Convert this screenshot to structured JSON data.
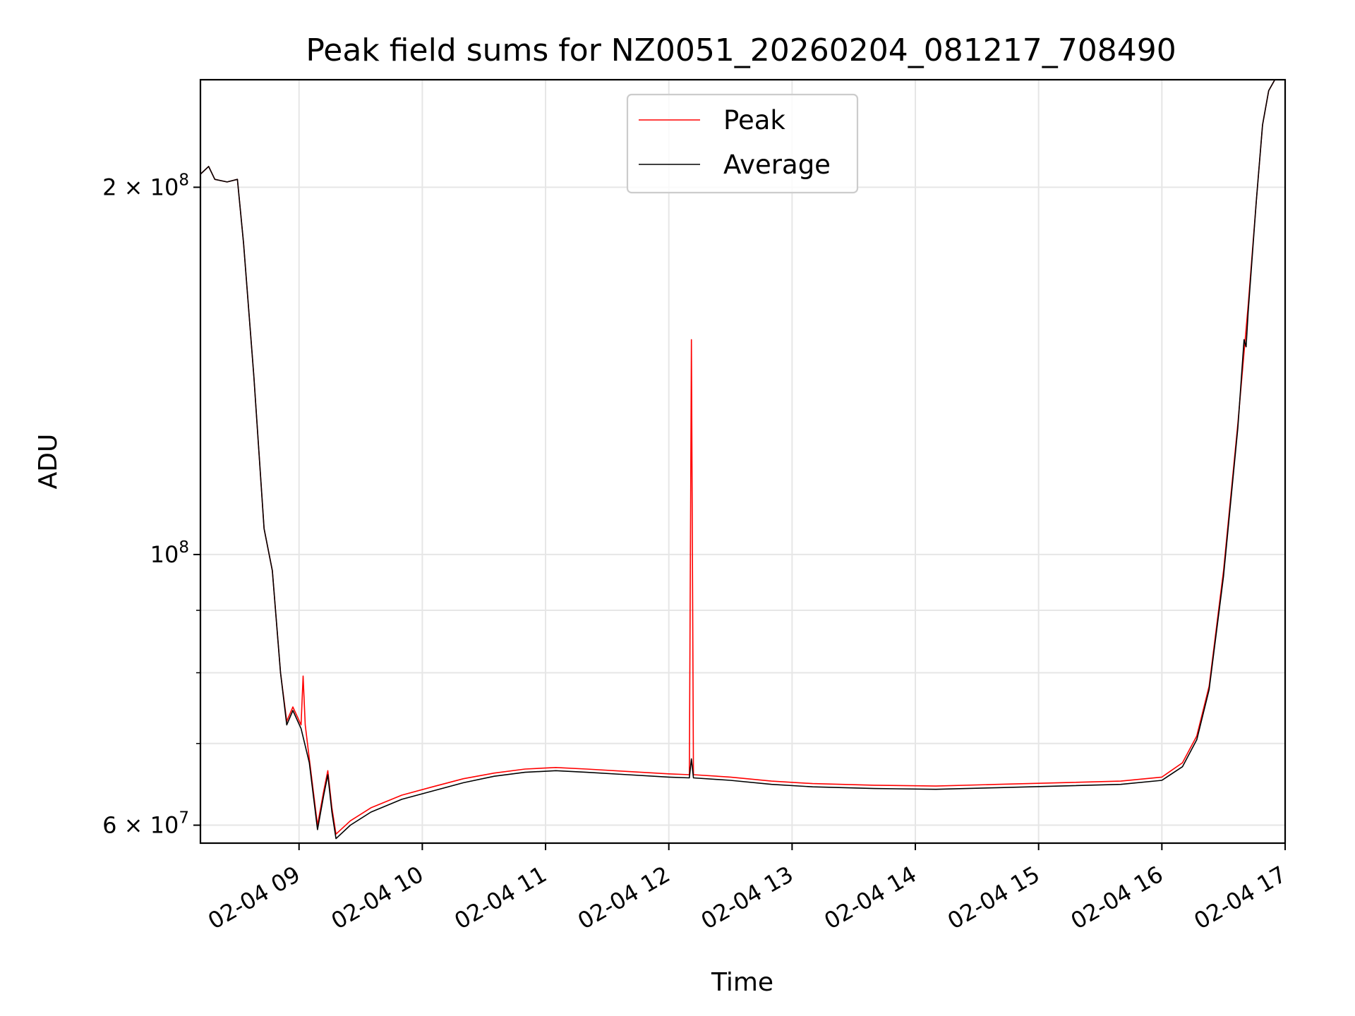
{
  "chart_data": {
    "type": "line",
    "title": "Peak field sums for NZ0051_20260204_081217_708490",
    "xlabel": "Time",
    "ylabel": "ADU",
    "y_scale": "log",
    "ylim": [
      58000000,
      245000000
    ],
    "xlim": [
      "2026-02-04 08:12",
      "2026-02-04 17:00"
    ],
    "x_ticks": [
      {
        "value": "2026-02-04 09:00",
        "label": "02-04 09"
      },
      {
        "value": "2026-02-04 10:00",
        "label": "02-04 10"
      },
      {
        "value": "2026-02-04 11:00",
        "label": "02-04 11"
      },
      {
        "value": "2026-02-04 12:00",
        "label": "02-04 12"
      },
      {
        "value": "2026-02-04 13:00",
        "label": "02-04 13"
      },
      {
        "value": "2026-02-04 14:00",
        "label": "02-04 14"
      },
      {
        "value": "2026-02-04 15:00",
        "label": "02-04 15"
      },
      {
        "value": "2026-02-04 16:00",
        "label": "02-04 16"
      },
      {
        "value": "2026-02-04 17:00",
        "label": "02-04 17"
      }
    ],
    "y_ticks_major": [
      {
        "value": 60000000,
        "base": "6 × 10",
        "exp": "7"
      },
      {
        "value": 100000000,
        "base": "10",
        "exp": "8"
      },
      {
        "value": 200000000,
        "base": "2 × 10",
        "exp": "8"
      }
    ],
    "y_ticks_minor": [
      70000000,
      80000000,
      90000000
    ],
    "grid": true,
    "legend_position": "top-center",
    "series": [
      {
        "name": "Peak",
        "color": "#ff0000",
        "points": [
          [
            "2026-02-04 08:12",
            205000000
          ],
          [
            "2026-02-04 08:16",
            208000000
          ],
          [
            "2026-02-04 08:19",
            203000000
          ],
          [
            "2026-02-04 08:25",
            202000000
          ],
          [
            "2026-02-04 08:30",
            203000000
          ],
          [
            "2026-02-04 08:33",
            180000000
          ],
          [
            "2026-02-04 08:38",
            140000000
          ],
          [
            "2026-02-04 08:43",
            105000000
          ],
          [
            "2026-02-04 08:47",
            97000000
          ],
          [
            "2026-02-04 08:51",
            80000000
          ],
          [
            "2026-02-04 08:54",
            73000000
          ],
          [
            "2026-02-04 08:57",
            75000000
          ],
          [
            "2026-02-04 09:01",
            72500000
          ],
          [
            "2026-02-04 09:02",
            79500000
          ],
          [
            "2026-02-04 09:03",
            72500000
          ],
          [
            "2026-02-04 09:05",
            68000000
          ],
          [
            "2026-02-04 09:09",
            60000000
          ],
          [
            "2026-02-04 09:12",
            64000000
          ],
          [
            "2026-02-04 09:14",
            66500000
          ],
          [
            "2026-02-04 09:16",
            62000000
          ],
          [
            "2026-02-04 09:18",
            59000000
          ],
          [
            "2026-02-04 09:25",
            60500000
          ],
          [
            "2026-02-04 09:35",
            62000000
          ],
          [
            "2026-02-04 09:50",
            63500000
          ],
          [
            "2026-02-04 10:05",
            64500000
          ],
          [
            "2026-02-04 10:20",
            65500000
          ],
          [
            "2026-02-04 10:35",
            66200000
          ],
          [
            "2026-02-04 10:50",
            66700000
          ],
          [
            "2026-02-04 11:05",
            66900000
          ],
          [
            "2026-02-04 11:20",
            66700000
          ],
          [
            "2026-02-04 11:40",
            66400000
          ],
          [
            "2026-02-04 12:00",
            66100000
          ],
          [
            "2026-02-04 12:10",
            66000000
          ],
          [
            "2026-02-04 12:11",
            150000000
          ],
          [
            "2026-02-04 12:12",
            66000000
          ],
          [
            "2026-02-04 12:30",
            65700000
          ],
          [
            "2026-02-04 12:50",
            65200000
          ],
          [
            "2026-02-04 13:10",
            64900000
          ],
          [
            "2026-02-04 13:40",
            64700000
          ],
          [
            "2026-02-04 14:10",
            64600000
          ],
          [
            "2026-02-04 14:40",
            64800000
          ],
          [
            "2026-02-04 15:10",
            65000000
          ],
          [
            "2026-02-04 15:40",
            65200000
          ],
          [
            "2026-02-04 16:00",
            65700000
          ],
          [
            "2026-02-04 16:10",
            67500000
          ],
          [
            "2026-02-04 16:17",
            71000000
          ],
          [
            "2026-02-04 16:23",
            78000000
          ],
          [
            "2026-02-04 16:30",
            97000000
          ],
          [
            "2026-02-04 16:37",
            128000000
          ],
          [
            "2026-02-04 16:42",
            160000000
          ],
          [
            "2026-02-04 16:46",
            195000000
          ],
          [
            "2026-02-04 16:49",
            225000000
          ],
          [
            "2026-02-04 16:52",
            240000000
          ],
          [
            "2026-02-04 16:55",
            245000000
          ]
        ]
      },
      {
        "name": "Average",
        "color": "#000000",
        "points": [
          [
            "2026-02-04 08:12",
            205000000
          ],
          [
            "2026-02-04 08:16",
            208000000
          ],
          [
            "2026-02-04 08:19",
            203000000
          ],
          [
            "2026-02-04 08:25",
            202000000
          ],
          [
            "2026-02-04 08:30",
            203000000
          ],
          [
            "2026-02-04 08:33",
            180000000
          ],
          [
            "2026-02-04 08:38",
            140000000
          ],
          [
            "2026-02-04 08:43",
            105000000
          ],
          [
            "2026-02-04 08:47",
            97000000
          ],
          [
            "2026-02-04 08:51",
            80000000
          ],
          [
            "2026-02-04 08:54",
            72500000
          ],
          [
            "2026-02-04 08:57",
            74500000
          ],
          [
            "2026-02-04 09:01",
            72000000
          ],
          [
            "2026-02-04 09:05",
            67500000
          ],
          [
            "2026-02-04 09:09",
            59500000
          ],
          [
            "2026-02-04 09:12",
            63500000
          ],
          [
            "2026-02-04 09:14",
            66000000
          ],
          [
            "2026-02-04 09:16",
            61500000
          ],
          [
            "2026-02-04 09:18",
            58500000
          ],
          [
            "2026-02-04 09:25",
            60000000
          ],
          [
            "2026-02-04 09:35",
            61500000
          ],
          [
            "2026-02-04 09:50",
            63000000
          ],
          [
            "2026-02-04 10:05",
            64000000
          ],
          [
            "2026-02-04 10:20",
            65000000
          ],
          [
            "2026-02-04 10:35",
            65800000
          ],
          [
            "2026-02-04 10:50",
            66300000
          ],
          [
            "2026-02-04 11:05",
            66500000
          ],
          [
            "2026-02-04 11:20",
            66300000
          ],
          [
            "2026-02-04 11:40",
            66000000
          ],
          [
            "2026-02-04 12:00",
            65700000
          ],
          [
            "2026-02-04 12:10",
            65600000
          ],
          [
            "2026-02-04 12:11",
            68000000
          ],
          [
            "2026-02-04 12:12",
            65600000
          ],
          [
            "2026-02-04 12:30",
            65300000
          ],
          [
            "2026-02-04 12:50",
            64800000
          ],
          [
            "2026-02-04 13:10",
            64500000
          ],
          [
            "2026-02-04 13:40",
            64300000
          ],
          [
            "2026-02-04 14:10",
            64200000
          ],
          [
            "2026-02-04 14:40",
            64400000
          ],
          [
            "2026-02-04 15:10",
            64600000
          ],
          [
            "2026-02-04 15:40",
            64800000
          ],
          [
            "2026-02-04 16:00",
            65300000
          ],
          [
            "2026-02-04 16:10",
            67000000
          ],
          [
            "2026-02-04 16:17",
            70500000
          ],
          [
            "2026-02-04 16:23",
            77500000
          ],
          [
            "2026-02-04 16:30",
            96000000
          ],
          [
            "2026-02-04 16:37",
            127000000
          ],
          [
            "2026-02-04 16:40",
            150000000
          ],
          [
            "2026-02-04 16:41",
            148000000
          ],
          [
            "2026-02-04 16:42",
            158000000
          ],
          [
            "2026-02-04 16:46",
            195000000
          ],
          [
            "2026-02-04 16:49",
            225000000
          ],
          [
            "2026-02-04 16:52",
            240000000
          ],
          [
            "2026-02-04 16:55",
            245000000
          ]
        ]
      }
    ]
  }
}
